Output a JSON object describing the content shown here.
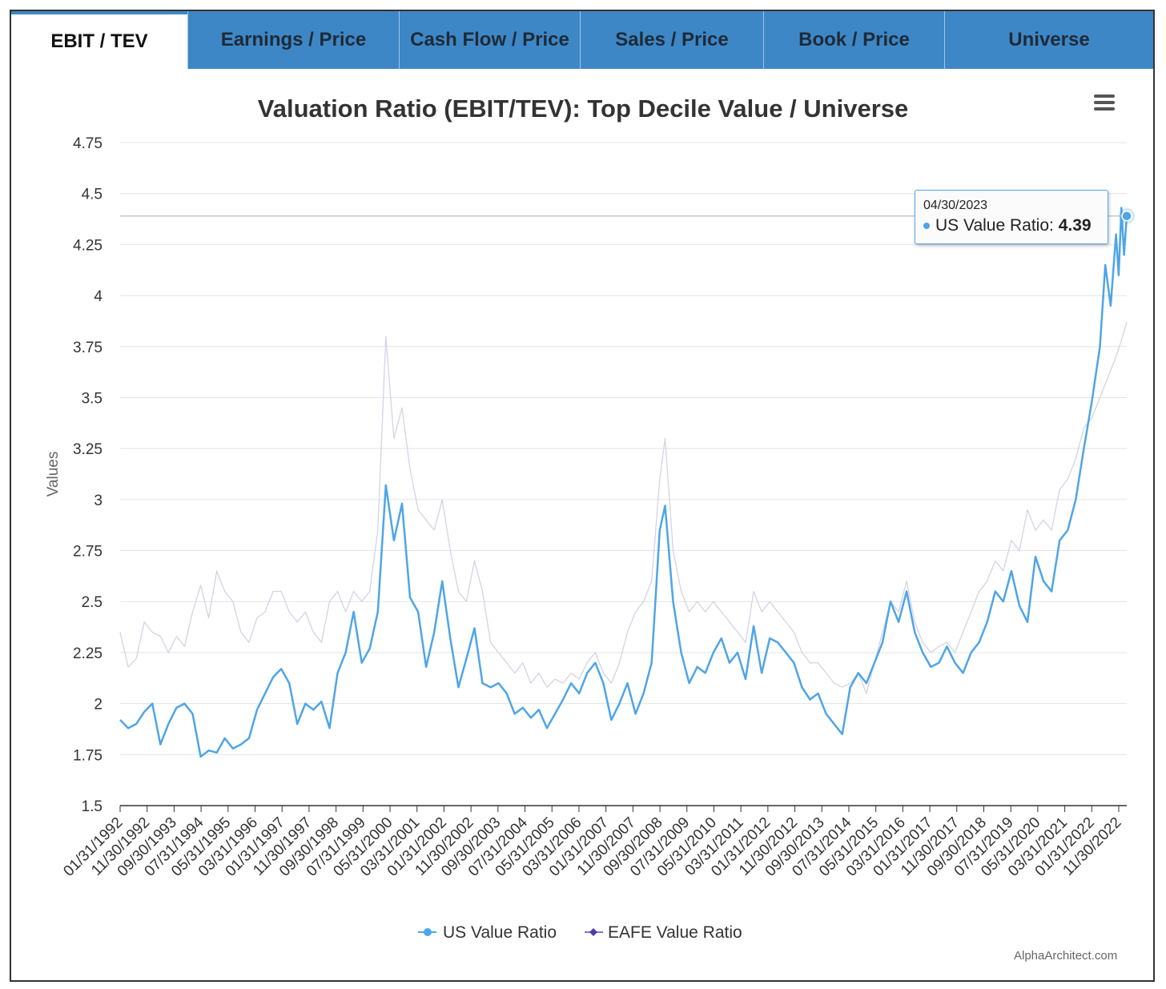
{
  "tabs": [
    {
      "label": "EBIT / TEV",
      "active": true
    },
    {
      "label": "Earnings / Price",
      "active": false
    },
    {
      "label": "Cash Flow / Price",
      "active": false
    },
    {
      "label": "Sales / Price",
      "active": false
    },
    {
      "label": "Book / Price",
      "active": false
    },
    {
      "label": "Universe",
      "active": false
    }
  ],
  "tooltip": {
    "date": "04/30/2023",
    "series": "US Value Ratio:",
    "value": "4.39"
  },
  "credit": "AlphaArchitect.com",
  "colors": {
    "tab_bar": "#3d87c6",
    "us_series": "#4ea5e8",
    "eafe_series": "#d3d3e6",
    "eafe_marker": "#4b3fa8"
  },
  "chart_data": {
    "type": "line",
    "title": "Valuation Ratio (EBIT/TEV): Top Decile Value / Universe",
    "ylabel": "Values",
    "xlabel": "",
    "ylim": [
      1.5,
      4.75
    ],
    "yticks": [
      "1.5",
      "1.75",
      "2",
      "2.25",
      "2.5",
      "2.75",
      "3",
      "3.25",
      "3.5",
      "3.75",
      "4",
      "4.25",
      "4.5",
      "4.75"
    ],
    "xticks": [
      "01/31/1992",
      "11/30/1992",
      "09/30/1993",
      "07/31/1994",
      "05/31/1995",
      "03/31/1996",
      "01/31/1997",
      "11/30/1997",
      "09/30/1998",
      "07/31/1999",
      "05/31/2000",
      "03/31/2001",
      "01/31/2002",
      "11/30/2002",
      "09/30/2003",
      "07/31/2004",
      "05/31/2005",
      "03/31/2006",
      "01/31/2007",
      "11/30/2007",
      "09/30/2008",
      "07/31/2009",
      "05/31/2010",
      "03/31/2011",
      "01/31/2012",
      "11/30/2012",
      "09/30/2013",
      "07/31/2014",
      "05/31/2015",
      "03/31/2016",
      "01/31/2017",
      "11/30/2017",
      "09/30/2018",
      "07/31/2019",
      "05/31/2020",
      "03/31/2021",
      "01/31/2022",
      "11/30/2022"
    ],
    "grid": true,
    "legend_position": "bottom-center",
    "series": [
      {
        "name": "US Value Ratio",
        "points": [
          [
            "1992-01",
            1.92
          ],
          [
            "1992-04",
            1.88
          ],
          [
            "1992-07",
            1.9
          ],
          [
            "1992-10",
            1.96
          ],
          [
            "1993-01",
            2.0
          ],
          [
            "1993-04",
            1.8
          ],
          [
            "1993-07",
            1.9
          ],
          [
            "1993-10",
            1.98
          ],
          [
            "1994-01",
            2.0
          ],
          [
            "1994-04",
            1.95
          ],
          [
            "1994-07",
            1.74
          ],
          [
            "1994-10",
            1.77
          ],
          [
            "1995-01",
            1.76
          ],
          [
            "1995-04",
            1.83
          ],
          [
            "1995-07",
            1.78
          ],
          [
            "1995-10",
            1.8
          ],
          [
            "1996-01",
            1.83
          ],
          [
            "1996-04",
            1.97
          ],
          [
            "1996-07",
            2.05
          ],
          [
            "1996-10",
            2.13
          ],
          [
            "1997-01",
            2.17
          ],
          [
            "1997-04",
            2.1
          ],
          [
            "1997-07",
            1.9
          ],
          [
            "1997-10",
            2.0
          ],
          [
            "1998-01",
            1.97
          ],
          [
            "1998-04",
            2.01
          ],
          [
            "1998-07",
            1.88
          ],
          [
            "1998-10",
            2.15
          ],
          [
            "1999-01",
            2.25
          ],
          [
            "1999-04",
            2.45
          ],
          [
            "1999-07",
            2.2
          ],
          [
            "1999-10",
            2.27
          ],
          [
            "2000-01",
            2.45
          ],
          [
            "2000-04",
            3.07
          ],
          [
            "2000-07",
            2.8
          ],
          [
            "2000-10",
            2.98
          ],
          [
            "2001-01",
            2.52
          ],
          [
            "2001-04",
            2.45
          ],
          [
            "2001-07",
            2.18
          ],
          [
            "2001-10",
            2.35
          ],
          [
            "2002-01",
            2.6
          ],
          [
            "2002-04",
            2.32
          ],
          [
            "2002-07",
            2.08
          ],
          [
            "2002-10",
            2.22
          ],
          [
            "2003-01",
            2.37
          ],
          [
            "2003-04",
            2.1
          ],
          [
            "2003-07",
            2.08
          ],
          [
            "2003-10",
            2.1
          ],
          [
            "2004-01",
            2.05
          ],
          [
            "2004-04",
            1.95
          ],
          [
            "2004-07",
            1.98
          ],
          [
            "2004-10",
            1.93
          ],
          [
            "2005-01",
            1.97
          ],
          [
            "2005-04",
            1.88
          ],
          [
            "2005-07",
            1.95
          ],
          [
            "2005-10",
            2.02
          ],
          [
            "2006-01",
            2.1
          ],
          [
            "2006-04",
            2.05
          ],
          [
            "2006-07",
            2.15
          ],
          [
            "2006-10",
            2.2
          ],
          [
            "2007-01",
            2.1
          ],
          [
            "2007-04",
            1.92
          ],
          [
            "2007-07",
            2.0
          ],
          [
            "2007-10",
            2.1
          ],
          [
            "2008-01",
            1.95
          ],
          [
            "2008-04",
            2.05
          ],
          [
            "2008-07",
            2.2
          ],
          [
            "2008-10",
            2.85
          ],
          [
            "2008-12",
            2.97
          ],
          [
            "2009-03",
            2.5
          ],
          [
            "2009-06",
            2.25
          ],
          [
            "2009-09",
            2.1
          ],
          [
            "2009-12",
            2.18
          ],
          [
            "2010-03",
            2.15
          ],
          [
            "2010-06",
            2.25
          ],
          [
            "2010-09",
            2.32
          ],
          [
            "2010-12",
            2.2
          ],
          [
            "2011-03",
            2.25
          ],
          [
            "2011-06",
            2.12
          ],
          [
            "2011-09",
            2.38
          ],
          [
            "2011-12",
            2.15
          ],
          [
            "2012-03",
            2.32
          ],
          [
            "2012-06",
            2.3
          ],
          [
            "2012-09",
            2.25
          ],
          [
            "2012-12",
            2.2
          ],
          [
            "2013-03",
            2.08
          ],
          [
            "2013-06",
            2.02
          ],
          [
            "2013-09",
            2.05
          ],
          [
            "2013-12",
            1.95
          ],
          [
            "2014-03",
            1.9
          ],
          [
            "2014-06",
            1.85
          ],
          [
            "2014-09",
            2.08
          ],
          [
            "2014-12",
            2.15
          ],
          [
            "2015-03",
            2.1
          ],
          [
            "2015-06",
            2.2
          ],
          [
            "2015-09",
            2.3
          ],
          [
            "2015-12",
            2.5
          ],
          [
            "2016-03",
            2.4
          ],
          [
            "2016-06",
            2.55
          ],
          [
            "2016-09",
            2.35
          ],
          [
            "2016-12",
            2.25
          ],
          [
            "2017-03",
            2.18
          ],
          [
            "2017-06",
            2.2
          ],
          [
            "2017-09",
            2.28
          ],
          [
            "2017-12",
            2.2
          ],
          [
            "2018-03",
            2.15
          ],
          [
            "2018-06",
            2.25
          ],
          [
            "2018-09",
            2.3
          ],
          [
            "2018-12",
            2.4
          ],
          [
            "2019-03",
            2.55
          ],
          [
            "2019-06",
            2.5
          ],
          [
            "2019-09",
            2.65
          ],
          [
            "2019-12",
            2.48
          ],
          [
            "2020-03",
            2.4
          ],
          [
            "2020-06",
            2.72
          ],
          [
            "2020-09",
            2.6
          ],
          [
            "2020-12",
            2.55
          ],
          [
            "2021-03",
            2.8
          ],
          [
            "2021-06",
            2.85
          ],
          [
            "2021-09",
            3.0
          ],
          [
            "2021-12",
            3.25
          ],
          [
            "2022-03",
            3.48
          ],
          [
            "2022-06",
            3.75
          ],
          [
            "2022-08",
            4.15
          ],
          [
            "2022-10",
            3.95
          ],
          [
            "2022-12",
            4.3
          ],
          [
            "2023-01",
            4.1
          ],
          [
            "2023-02",
            4.43
          ],
          [
            "2023-03",
            4.2
          ],
          [
            "2023-04",
            4.39
          ]
        ]
      },
      {
        "name": "EAFE Value Ratio",
        "points": [
          [
            "1992-01",
            2.35
          ],
          [
            "1992-04",
            2.18
          ],
          [
            "1992-07",
            2.22
          ],
          [
            "1992-10",
            2.4
          ],
          [
            "1993-01",
            2.35
          ],
          [
            "1993-04",
            2.33
          ],
          [
            "1993-07",
            2.25
          ],
          [
            "1993-10",
            2.33
          ],
          [
            "1994-01",
            2.28
          ],
          [
            "1994-04",
            2.45
          ],
          [
            "1994-07",
            2.58
          ],
          [
            "1994-10",
            2.42
          ],
          [
            "1995-01",
            2.65
          ],
          [
            "1995-04",
            2.55
          ],
          [
            "1995-07",
            2.5
          ],
          [
            "1995-10",
            2.35
          ],
          [
            "1996-01",
            2.3
          ],
          [
            "1996-04",
            2.42
          ],
          [
            "1996-07",
            2.45
          ],
          [
            "1996-10",
            2.55
          ],
          [
            "1997-01",
            2.55
          ],
          [
            "1997-04",
            2.45
          ],
          [
            "1997-07",
            2.4
          ],
          [
            "1997-10",
            2.45
          ],
          [
            "1998-01",
            2.35
          ],
          [
            "1998-04",
            2.3
          ],
          [
            "1998-07",
            2.5
          ],
          [
            "1998-10",
            2.55
          ],
          [
            "1999-01",
            2.45
          ],
          [
            "1999-04",
            2.55
          ],
          [
            "1999-07",
            2.5
          ],
          [
            "1999-10",
            2.55
          ],
          [
            "2000-01",
            2.85
          ],
          [
            "2000-04",
            3.8
          ],
          [
            "2000-07",
            3.3
          ],
          [
            "2000-10",
            3.45
          ],
          [
            "2001-01",
            3.15
          ],
          [
            "2001-04",
            2.95
          ],
          [
            "2001-07",
            2.9
          ],
          [
            "2001-10",
            2.85
          ],
          [
            "2002-01",
            3.0
          ],
          [
            "2002-04",
            2.75
          ],
          [
            "2002-07",
            2.55
          ],
          [
            "2002-10",
            2.5
          ],
          [
            "2003-01",
            2.7
          ],
          [
            "2003-04",
            2.55
          ],
          [
            "2003-07",
            2.3
          ],
          [
            "2003-10",
            2.25
          ],
          [
            "2004-01",
            2.2
          ],
          [
            "2004-04",
            2.15
          ],
          [
            "2004-07",
            2.2
          ],
          [
            "2004-10",
            2.1
          ],
          [
            "2005-01",
            2.15
          ],
          [
            "2005-04",
            2.08
          ],
          [
            "2005-07",
            2.12
          ],
          [
            "2005-10",
            2.1
          ],
          [
            "2006-01",
            2.15
          ],
          [
            "2006-04",
            2.12
          ],
          [
            "2006-07",
            2.2
          ],
          [
            "2006-10",
            2.25
          ],
          [
            "2007-01",
            2.15
          ],
          [
            "2007-04",
            2.1
          ],
          [
            "2007-07",
            2.2
          ],
          [
            "2007-10",
            2.35
          ],
          [
            "2008-01",
            2.45
          ],
          [
            "2008-04",
            2.5
          ],
          [
            "2008-07",
            2.6
          ],
          [
            "2008-10",
            3.1
          ],
          [
            "2008-12",
            3.3
          ],
          [
            "2009-03",
            2.75
          ],
          [
            "2009-06",
            2.55
          ],
          [
            "2009-09",
            2.45
          ],
          [
            "2009-12",
            2.5
          ],
          [
            "2010-03",
            2.45
          ],
          [
            "2010-06",
            2.5
          ],
          [
            "2010-09",
            2.45
          ],
          [
            "2010-12",
            2.4
          ],
          [
            "2011-03",
            2.35
          ],
          [
            "2011-06",
            2.3
          ],
          [
            "2011-09",
            2.55
          ],
          [
            "2011-12",
            2.45
          ],
          [
            "2012-03",
            2.5
          ],
          [
            "2012-06",
            2.45
          ],
          [
            "2012-09",
            2.4
          ],
          [
            "2012-12",
            2.35
          ],
          [
            "2013-03",
            2.25
          ],
          [
            "2013-06",
            2.2
          ],
          [
            "2013-09",
            2.2
          ],
          [
            "2013-12",
            2.15
          ],
          [
            "2014-03",
            2.1
          ],
          [
            "2014-06",
            2.08
          ],
          [
            "2014-09",
            2.1
          ],
          [
            "2014-12",
            2.15
          ],
          [
            "2015-03",
            2.05
          ],
          [
            "2015-06",
            2.2
          ],
          [
            "2015-09",
            2.35
          ],
          [
            "2015-12",
            2.5
          ],
          [
            "2016-03",
            2.45
          ],
          [
            "2016-06",
            2.6
          ],
          [
            "2016-09",
            2.4
          ],
          [
            "2016-12",
            2.3
          ],
          [
            "2017-03",
            2.25
          ],
          [
            "2017-06",
            2.28
          ],
          [
            "2017-09",
            2.3
          ],
          [
            "2017-12",
            2.25
          ],
          [
            "2018-03",
            2.35
          ],
          [
            "2018-06",
            2.45
          ],
          [
            "2018-09",
            2.55
          ],
          [
            "2018-12",
            2.6
          ],
          [
            "2019-03",
            2.7
          ],
          [
            "2019-06",
            2.65
          ],
          [
            "2019-09",
            2.8
          ],
          [
            "2019-12",
            2.75
          ],
          [
            "2020-03",
            2.95
          ],
          [
            "2020-06",
            2.85
          ],
          [
            "2020-09",
            2.9
          ],
          [
            "2020-12",
            2.85
          ],
          [
            "2021-03",
            3.05
          ],
          [
            "2021-06",
            3.1
          ],
          [
            "2021-09",
            3.2
          ],
          [
            "2021-12",
            3.35
          ],
          [
            "2022-03",
            3.4
          ],
          [
            "2022-06",
            3.5
          ],
          [
            "2022-09",
            3.6
          ],
          [
            "2022-12",
            3.7
          ],
          [
            "2023-02",
            3.78
          ],
          [
            "2023-04",
            3.87
          ]
        ]
      }
    ]
  }
}
